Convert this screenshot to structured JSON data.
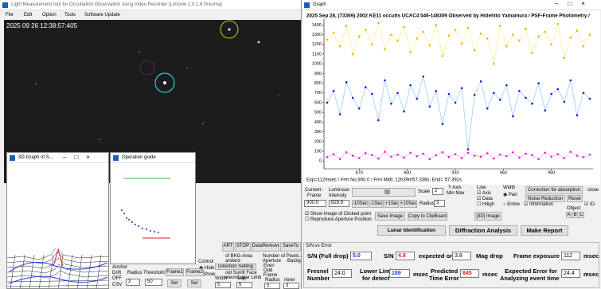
{
  "main_window": {
    "title": "Light Measurement tool for Occultation Observation using Video Recorder [Limovie 1.0.1.6 Preuma]",
    "menu": [
      "File",
      "Edit",
      "Option",
      "Tools",
      "Software Update"
    ],
    "timestamp": "2025 09 26 12:38:57:405"
  },
  "graph3d_window": {
    "title": "3D-Graph of S..."
  },
  "guide_window": {
    "title": "Operation guide"
  },
  "control_panel": {
    "buttons": [
      "ART",
      "STOP",
      "DataRemove",
      "SaveTo"
    ],
    "control_label": "Control",
    "radios": [
      "Hide",
      "Show"
    ],
    "direction_setting": "Direction Setting",
    "bkg_lines": [
      "of BKG-Area",
      "andard",
      "oid Sunlit Face",
      "eteor/Lunar Limb"
    ],
    "width_label": "Width",
    "gap_label": "Gap",
    "width_value": "5",
    "gap_value": "5",
    "pixels_label": "Number of Pixels / Pi",
    "aperture_label": "Aperture",
    "backg_label": "Backg",
    "rows": [
      "Even",
      "Odd",
      "Frame"
    ],
    "radius_label": "Radius",
    "inner_label": "Inner",
    "radius_value": "5",
    "inner_value": "3",
    "anchor_labels": [
      "Anchor",
      "Drift",
      "OFF",
      "CSV"
    ],
    "threshold_radius_label": "Radius",
    "threshold_label": "Threshold",
    "threshold_radius_value": "3",
    "threshold_value": "50",
    "frame_buttons": [
      "Frame1",
      "Frame2"
    ],
    "set_buttons": [
      "Set",
      "Set"
    ]
  },
  "graph_window": {
    "title": "Graph",
    "controls": {
      "current_frame_label": [
        "Current-",
        "Frame"
      ],
      "current_frame": "900.0",
      "intensity_label": [
        "Luminous",
        "Intensity"
      ],
      "intensity": "829.9",
      "scale_label": "Scale",
      "scale": "2",
      "y_axis_label": [
        "Y Axis",
        "Min Max"
      ],
      "line_label": "Line",
      "line_checks": [
        "Axis",
        "Data",
        "Hiligh"
      ],
      "width_label": "Width",
      "width_radios": [
        "Pari",
        "Entire"
      ],
      "information": "Information",
      "correction": "Correction for absorption",
      "noise": "Noise Reduction",
      "reset": "Reset",
      "close": "close",
      "id": "ID",
      "object_label": "Object",
      "objects": [
        "A",
        "B",
        "C"
      ],
      "step_buttons": [
        "-10Sec",
        "-1Sec",
        "+1Sec",
        "+10Sec"
      ],
      "radius_label": "Radius",
      "radius": "3",
      "show_image": "Show Image of Clicked point",
      "reproduce": "Reproduce Aperture Position",
      "save_image": "Save Image",
      "copy": "Copy to ClipBoard",
      "image3d": "[3D] Image",
      "lunar": "Lunar Identification",
      "diffraction": "Diffraction Analysis",
      "report": "Make Report"
    },
    "sn_panel": {
      "title": "S/N vs Error",
      "sn_full_label": "S/N (Full drop)",
      "sn_full": "5.0",
      "sn_label": "S/N",
      "sn": "4.8",
      "expected_on": "expected on",
      "mag_drop_value": "3.8",
      "mag_drop": "Mag drop",
      "exposure_label": "Frame exposure",
      "exposure": "112",
      "msec": "msec",
      "fresnel_label": [
        "Fresnel",
        "Number"
      ],
      "fresnel": "24.0",
      "lower_label": [
        "Lower Limit",
        "for detect"
      ],
      "lower": "189",
      "predicted_label": [
        "Predicted",
        "Time Error"
      ],
      "predicted": "845",
      "expected_label": [
        "Expected Error for",
        "Analyzing event time"
      ],
      "expected": "24.4"
    }
  },
  "chart_data": {
    "type": "line",
    "title": "2025 Sep 28, (73369) 2002 KE11 occults UCAC4 546-148309 Observed by Hidehito Yamamura / PSF-Frame Photometry /",
    "footer": "Exp=112msec / Frm No.900.0 / Frm Midt: 12h39m57.336s, End= 57.392s",
    "x": [
      850,
      854,
      858,
      862,
      866,
      870,
      874,
      878,
      882,
      886,
      890,
      894,
      898,
      902,
      906,
      910,
      914,
      918,
      922,
      926,
      930,
      934,
      938,
      942,
      946,
      950,
      954,
      958,
      962,
      966,
      970,
      974,
      978,
      982,
      986,
      990,
      994,
      998,
      1002,
      1006,
      1010,
      1014
    ],
    "series": [
      {
        "color": "#f0b400",
        "line_color": "#fde98a",
        "values": [
          1250,
          1320,
          1180,
          1390,
          1100,
          1280,
          1350,
          1200,
          1420,
          1150,
          1300,
          1240,
          1380,
          1120,
          1260,
          1330,
          1190,
          1400,
          1080,
          1290,
          1350,
          1210,
          1370,
          1140,
          1310,
          1260,
          1000,
          1390,
          1180,
          1300,
          1240,
          1360,
          1110,
          1280,
          1330,
          1200,
          1410,
          1060,
          1270,
          1340,
          1180,
          1300
        ]
      },
      {
        "color": "#1a1ad0",
        "line_color": "#8cc8f0",
        "values": [
          600,
          720,
          480,
          810,
          650,
          540,
          760,
          690,
          420,
          830,
          590,
          700,
          510,
          780,
          640,
          870,
          560,
          720,
          380,
          690,
          600,
          750,
          120,
          680,
          820,
          540,
          700,
          630,
          780,
          460,
          720,
          650,
          590,
          800,
          520,
          690,
          740,
          610,
          830,
          470,
          700,
          640
        ]
      },
      {
        "color": "#e020e0",
        "line_color": "#f5a0f0",
        "values": [
          40,
          70,
          20,
          90,
          55,
          30,
          80,
          60,
          25,
          95,
          45,
          65,
          35,
          85,
          50,
          75,
          20,
          60,
          90,
          40,
          70,
          30,
          85,
          55,
          45,
          80,
          25,
          65,
          50,
          90,
          35,
          75,
          60,
          20,
          85,
          45,
          70,
          30,
          95,
          55,
          40,
          65
        ]
      }
    ],
    "xlim": [
      848,
      1016
    ],
    "ylim": [
      -80,
      1460
    ],
    "xticks": [
      870,
      900,
      930,
      960,
      990
    ],
    "yticks": [
      0,
      100,
      200,
      300,
      400,
      500,
      600,
      700,
      800,
      900,
      1000,
      1100,
      1200,
      1300,
      1400
    ],
    "grid": false,
    "markers": true
  }
}
